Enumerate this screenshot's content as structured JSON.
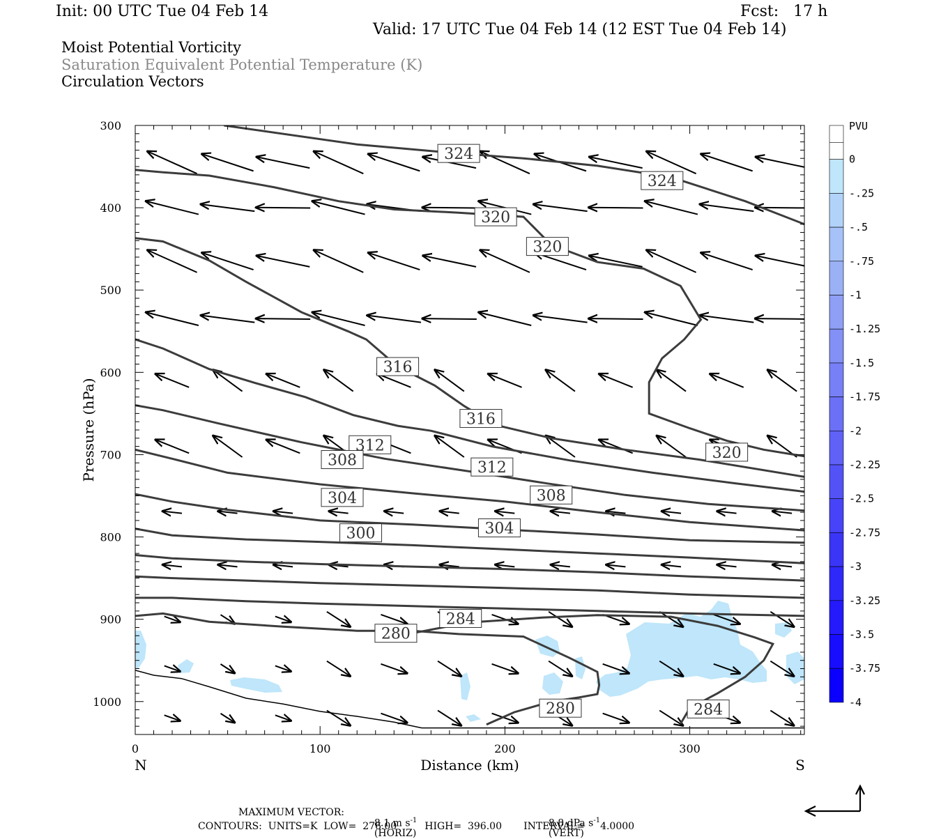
{
  "header": {
    "init": "Init: 00 UTC Tue 04 Feb 14",
    "fcst": "Fcst:   17 h",
    "valid": "Valid: 17 UTC Tue 04 Feb 14 (12 EST Tue 04 Feb 14)",
    "field1": "Moist Potential Vorticity",
    "field2": "Saturation Equivalent Potential Temperature (K)",
    "field3": "Circulation Vectors"
  },
  "colors": {
    "contour": "#3c3c3c",
    "field2_text": "#888888",
    "shade_light": "#bfe6fa"
  },
  "footer": {
    "max_label": "MAXIMUM VECTOR:",
    "horiz_value": "8.1 m s",
    "horiz_sup": "-1",
    "horiz_unit": "(HORIZ)",
    "vert_value": "8.8 dPa s",
    "vert_sup": "-1",
    "vert_unit": "(VERT)",
    "contours": "CONTOURS:  UNITS=K  LOW=  276.00         HIGH=  396.00       INTERVAL=     4.0000"
  },
  "chart_data": {
    "type": "line",
    "xlabel": "Distance (km)",
    "ylabel": "Pressure (hPa)",
    "xlim": [
      0,
      362
    ],
    "ylim": [
      300,
      1040
    ],
    "x_ticks": [
      "0",
      "100",
      "200",
      "300"
    ],
    "y_ticks": [
      "300",
      "400",
      "500",
      "600",
      "700",
      "800",
      "900",
      "1000"
    ],
    "left_end_label": "N",
    "right_end_label": "S",
    "colorbar": {
      "title": "PVU",
      "labels": [
        "0",
        "-.25",
        "-.5",
        "-.75",
        "-1",
        "-1.25",
        "-1.5",
        "-1.75",
        "-2",
        "-2.25",
        "-2.5",
        "-2.75",
        "-3",
        "-3.25",
        "-3.5",
        "-3.75",
        "-4"
      ],
      "colors": [
        "#ffffff",
        "#bfe6fa",
        "#b2d3f9",
        "#a6c2f8",
        "#9bb1f6",
        "#8f9ff6",
        "#8390f6",
        "#7780f6",
        "#6b70f7",
        "#5f61f7",
        "#5352f7",
        "#4743f8",
        "#3b35f8",
        "#2f28fa",
        "#241afb",
        "#180dfc",
        "#0b00fd"
      ]
    },
    "contour_labels": [
      {
        "text": "324",
        "x": 175,
        "y": 334
      },
      {
        "text": "324",
        "x": 285,
        "y": 367
      },
      {
        "text": "320",
        "x": 195,
        "y": 411
      },
      {
        "text": "320",
        "x": 223,
        "y": 447
      },
      {
        "text": "320",
        "x": 320,
        "y": 697
      },
      {
        "text": "316",
        "x": 142,
        "y": 593
      },
      {
        "text": "316",
        "x": 187,
        "y": 656
      },
      {
        "text": "312",
        "x": 127,
        "y": 688
      },
      {
        "text": "312",
        "x": 193,
        "y": 715
      },
      {
        "text": "308",
        "x": 112,
        "y": 706
      },
      {
        "text": "308",
        "x": 225,
        "y": 749
      },
      {
        "text": "304",
        "x": 112,
        "y": 752
      },
      {
        "text": "304",
        "x": 197,
        "y": 789
      },
      {
        "text": "300",
        "x": 122,
        "y": 795
      },
      {
        "text": "284",
        "x": 176,
        "y": 899
      },
      {
        "text": "284",
        "x": 310,
        "y": 1009
      },
      {
        "text": "280",
        "x": 141,
        "y": 917
      },
      {
        "text": "280",
        "x": 230,
        "y": 1008
      }
    ],
    "series": [
      {
        "values": [
          [
            48,
            300
          ],
          [
            120,
            323
          ],
          [
            170,
            333
          ],
          [
            210,
            340
          ],
          [
            250,
            349
          ],
          [
            290,
            363
          ],
          [
            330,
            392
          ],
          [
            362,
            420
          ]
        ]
      },
      {
        "values": [
          [
            0,
            354
          ],
          [
            15,
            357
          ],
          [
            40,
            361
          ],
          [
            75,
            375
          ],
          [
            110,
            392
          ],
          [
            140,
            402
          ],
          [
            175,
            406
          ],
          [
            210,
            411
          ],
          [
            225,
            445
          ],
          [
            250,
            466
          ],
          [
            275,
            474
          ],
          [
            295,
            495
          ],
          [
            306,
            536
          ],
          [
            297,
            560
          ],
          [
            285,
            583
          ],
          [
            278,
            612
          ],
          [
            278,
            650
          ],
          [
            300,
            668
          ],
          [
            320,
            683
          ],
          [
            340,
            694
          ],
          [
            362,
            702
          ]
        ]
      },
      {
        "values": [
          [
            0,
            437
          ],
          [
            15,
            441
          ],
          [
            40,
            464
          ],
          [
            60,
            490
          ],
          [
            90,
            527
          ],
          [
            115,
            550
          ],
          [
            125,
            560
          ],
          [
            142,
            593
          ],
          [
            162,
            616
          ],
          [
            178,
            641
          ],
          [
            195,
            664
          ],
          [
            225,
            680
          ],
          [
            265,
            694
          ],
          [
            305,
            706
          ],
          [
            362,
            727
          ]
        ]
      },
      {
        "values": [
          [
            0,
            560
          ],
          [
            15,
            571
          ],
          [
            40,
            596
          ],
          [
            65,
            613
          ],
          [
            92,
            630
          ],
          [
            118,
            652
          ],
          [
            142,
            665
          ],
          [
            160,
            671
          ],
          [
            193,
            690
          ],
          [
            235,
            707
          ],
          [
            280,
            722
          ],
          [
            325,
            735
          ],
          [
            362,
            745
          ]
        ]
      },
      {
        "values": [
          [
            0,
            640
          ],
          [
            15,
            646
          ],
          [
            45,
            662
          ],
          [
            90,
            685
          ],
          [
            135,
            705
          ],
          [
            180,
            720
          ],
          [
            223,
            735
          ],
          [
            265,
            749
          ],
          [
            310,
            760
          ],
          [
            362,
            768
          ]
        ]
      },
      {
        "values": [
          [
            0,
            694
          ],
          [
            20,
            705
          ],
          [
            50,
            722
          ],
          [
            100,
            736
          ],
          [
            150,
            747
          ],
          [
            200,
            757
          ],
          [
            250,
            770
          ],
          [
            300,
            782
          ],
          [
            362,
            792
          ]
        ]
      },
      {
        "values": [
          [
            0,
            748
          ],
          [
            20,
            757
          ],
          [
            50,
            767
          ],
          [
            100,
            780
          ],
          [
            150,
            785
          ],
          [
            200,
            791
          ],
          [
            250,
            797
          ],
          [
            300,
            804
          ],
          [
            362,
            807
          ]
        ]
      },
      {
        "values": [
          [
            0,
            790
          ],
          [
            20,
            798
          ],
          [
            60,
            803
          ],
          [
            100,
            806
          ],
          [
            150,
            810
          ],
          [
            200,
            815
          ],
          [
            250,
            820
          ],
          [
            300,
            825
          ],
          [
            362,
            832
          ]
        ]
      },
      {
        "values": [
          [
            0,
            822
          ],
          [
            20,
            826
          ],
          [
            60,
            830
          ],
          [
            100,
            833
          ],
          [
            150,
            836
          ],
          [
            200,
            839
          ],
          [
            250,
            843
          ],
          [
            300,
            848
          ],
          [
            362,
            853
          ]
        ]
      },
      {
        "values": [
          [
            0,
            848
          ],
          [
            20,
            850
          ],
          [
            60,
            853
          ],
          [
            100,
            856
          ],
          [
            150,
            859
          ],
          [
            200,
            862
          ],
          [
            250,
            865
          ],
          [
            300,
            870
          ],
          [
            362,
            874
          ]
        ]
      },
      {
        "values": [
          [
            0,
            874
          ],
          [
            20,
            874
          ],
          [
            60,
            878
          ],
          [
            100,
            881
          ],
          [
            150,
            884
          ],
          [
            200,
            887
          ],
          [
            250,
            890
          ],
          [
            300,
            893
          ],
          [
            362,
            896
          ]
        ]
      },
      {
        "values": [
          [
            0,
            896
          ],
          [
            15,
            893
          ],
          [
            40,
            903
          ],
          [
            80,
            909
          ],
          [
            120,
            914
          ],
          [
            150,
            914
          ],
          [
            175,
            918
          ],
          [
            210,
            921
          ],
          [
            235,
            947
          ],
          [
            250,
            964
          ],
          [
            251,
            980
          ],
          [
            250,
            991
          ],
          [
            240,
            995
          ],
          [
            225,
            1000
          ],
          [
            205,
            1013
          ],
          [
            190,
            1028
          ]
        ]
      },
      {
        "values": [
          [
            150,
            917
          ],
          [
            180,
            904
          ],
          [
            220,
            898
          ],
          [
            250,
            895
          ],
          [
            290,
            897
          ],
          [
            315,
            908
          ],
          [
            335,
            922
          ],
          [
            345,
            930
          ],
          [
            340,
            950
          ],
          [
            330,
            970
          ],
          [
            315,
            990
          ],
          [
            300,
            1008
          ],
          [
            295,
            1027
          ]
        ]
      },
      {
        "values": [
          [
            0,
            962
          ],
          [
            10,
            968
          ],
          [
            25,
            972
          ],
          [
            40,
            982
          ],
          [
            60,
            996
          ],
          [
            80,
            1003
          ],
          [
            100,
            1012
          ],
          [
            120,
            1018
          ],
          [
            140,
            1025
          ],
          [
            155,
            1032
          ],
          [
            200,
            1032
          ],
          [
            250,
            1032
          ],
          [
            300,
            1032
          ],
          [
            362,
            1032
          ]
        ]
      }
    ]
  }
}
